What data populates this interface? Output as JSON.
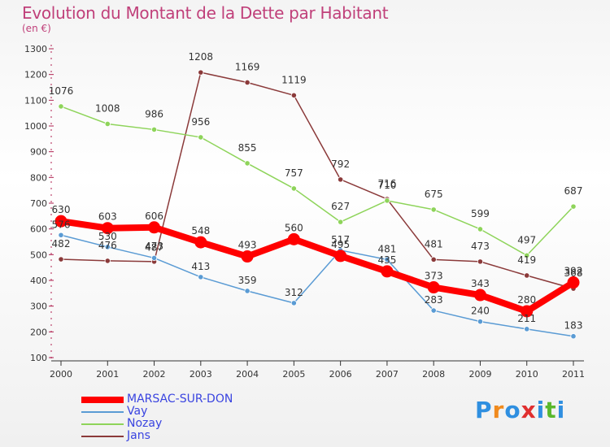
{
  "title": "Evolution du Montant de la Dette par Habitant",
  "unit": "(en €)",
  "logo": {
    "text": "Proxiti",
    "colors": [
      "#2f8fe0",
      "#f08a1d",
      "#2f8fe0",
      "#e02f2f",
      "#2f8fe0",
      "#5ab82c",
      "#2f8fe0"
    ]
  },
  "chart_data": {
    "type": "line",
    "x": [
      "2000",
      "2001",
      "2002",
      "2003",
      "2004",
      "2005",
      "2006",
      "2007",
      "2008",
      "2009",
      "2010",
      "2011"
    ],
    "ylim": [
      100,
      1300
    ],
    "yticks": [
      100,
      200,
      300,
      400,
      500,
      600,
      700,
      800,
      900,
      1000,
      1100,
      1200,
      1300
    ],
    "grid": false,
    "legend": "bottom-left",
    "series": [
      {
        "name": "MARSAC-SUR-DON",
        "color": "#ff0000",
        "values": [
          630,
          603,
          606,
          548,
          493,
          560,
          495,
          435,
          373,
          343,
          280,
          392
        ]
      },
      {
        "name": "Vay",
        "color": "#5a9bd4",
        "values": [
          576,
          530,
          487,
          413,
          359,
          312,
          517,
          481,
          283,
          240,
          211,
          183
        ]
      },
      {
        "name": "Nozay",
        "color": "#8ed45a",
        "values": [
          1076,
          1008,
          986,
          956,
          855,
          757,
          627,
          710,
          675,
          599,
          497,
          687
        ]
      },
      {
        "name": "Jans",
        "color": "#8b3a3a",
        "values": [
          482,
          476,
          473,
          1208,
          1169,
          1119,
          792,
          716,
          481,
          473,
          419,
          368
        ]
      }
    ]
  }
}
